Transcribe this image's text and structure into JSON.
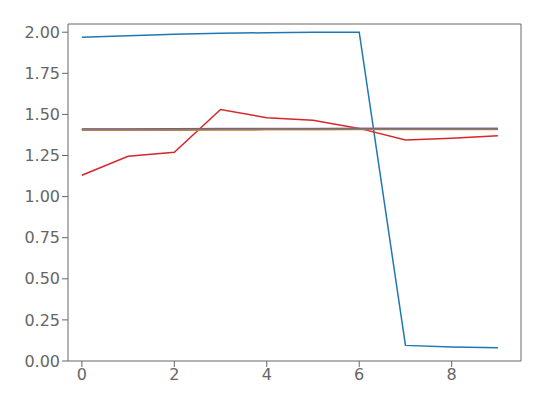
{
  "chart_data": {
    "type": "line",
    "x": [
      0,
      1,
      2,
      3,
      4,
      5,
      6,
      7,
      8,
      9
    ],
    "series": [
      {
        "color": "#1f77b4",
        "values": [
          1.97,
          1.978,
          1.988,
          1.993,
          1.997,
          2.0,
          2.0,
          0.095,
          0.085,
          0.08
        ]
      },
      {
        "color": "#d62728",
        "values": [
          1.13,
          1.245,
          1.27,
          1.53,
          1.48,
          1.465,
          1.415,
          1.345,
          1.355,
          1.37
        ]
      },
      {
        "color": "#2ca02c",
        "values": [
          1.408,
          1.408,
          1.409,
          1.41,
          1.411,
          1.412,
          1.413,
          1.413,
          1.413,
          1.413
        ]
      },
      {
        "color": "#ff7f0e",
        "values": [
          1.403,
          1.403,
          1.404,
          1.405,
          1.406,
          1.407,
          1.408,
          1.408,
          1.408,
          1.408
        ]
      },
      {
        "color": "#9467bd",
        "values": [
          1.412,
          1.412,
          1.413,
          1.414,
          1.415,
          1.415,
          1.416,
          1.416,
          1.416,
          1.416
        ]
      },
      {
        "color": "#8c564b",
        "values": [
          1.41,
          1.41,
          1.411,
          1.412,
          1.412,
          1.413,
          1.413,
          1.413,
          1.413,
          1.413
        ]
      },
      {
        "color": "#7f7f7f",
        "values": [
          1.406,
          1.406,
          1.407,
          1.408,
          1.409,
          1.41,
          1.41,
          1.41,
          1.41,
          1.41
        ]
      }
    ],
    "xlim": [
      -0.3,
      9.5
    ],
    "ylim": [
      0.0,
      2.05
    ],
    "xticks": [
      0,
      2,
      4,
      6,
      8
    ],
    "yticks": [
      {
        "value": 0.0,
        "label": "0.00"
      },
      0.25,
      {
        "value": 0.5,
        "label": "0.50"
      },
      0.75,
      {
        "value": 1.0,
        "label": "1.00"
      },
      1.25,
      {
        "value": 1.5,
        "label": "1.50"
      },
      1.75,
      {
        "value": 2.0,
        "label": "2.00"
      }
    ],
    "grid": false
  }
}
